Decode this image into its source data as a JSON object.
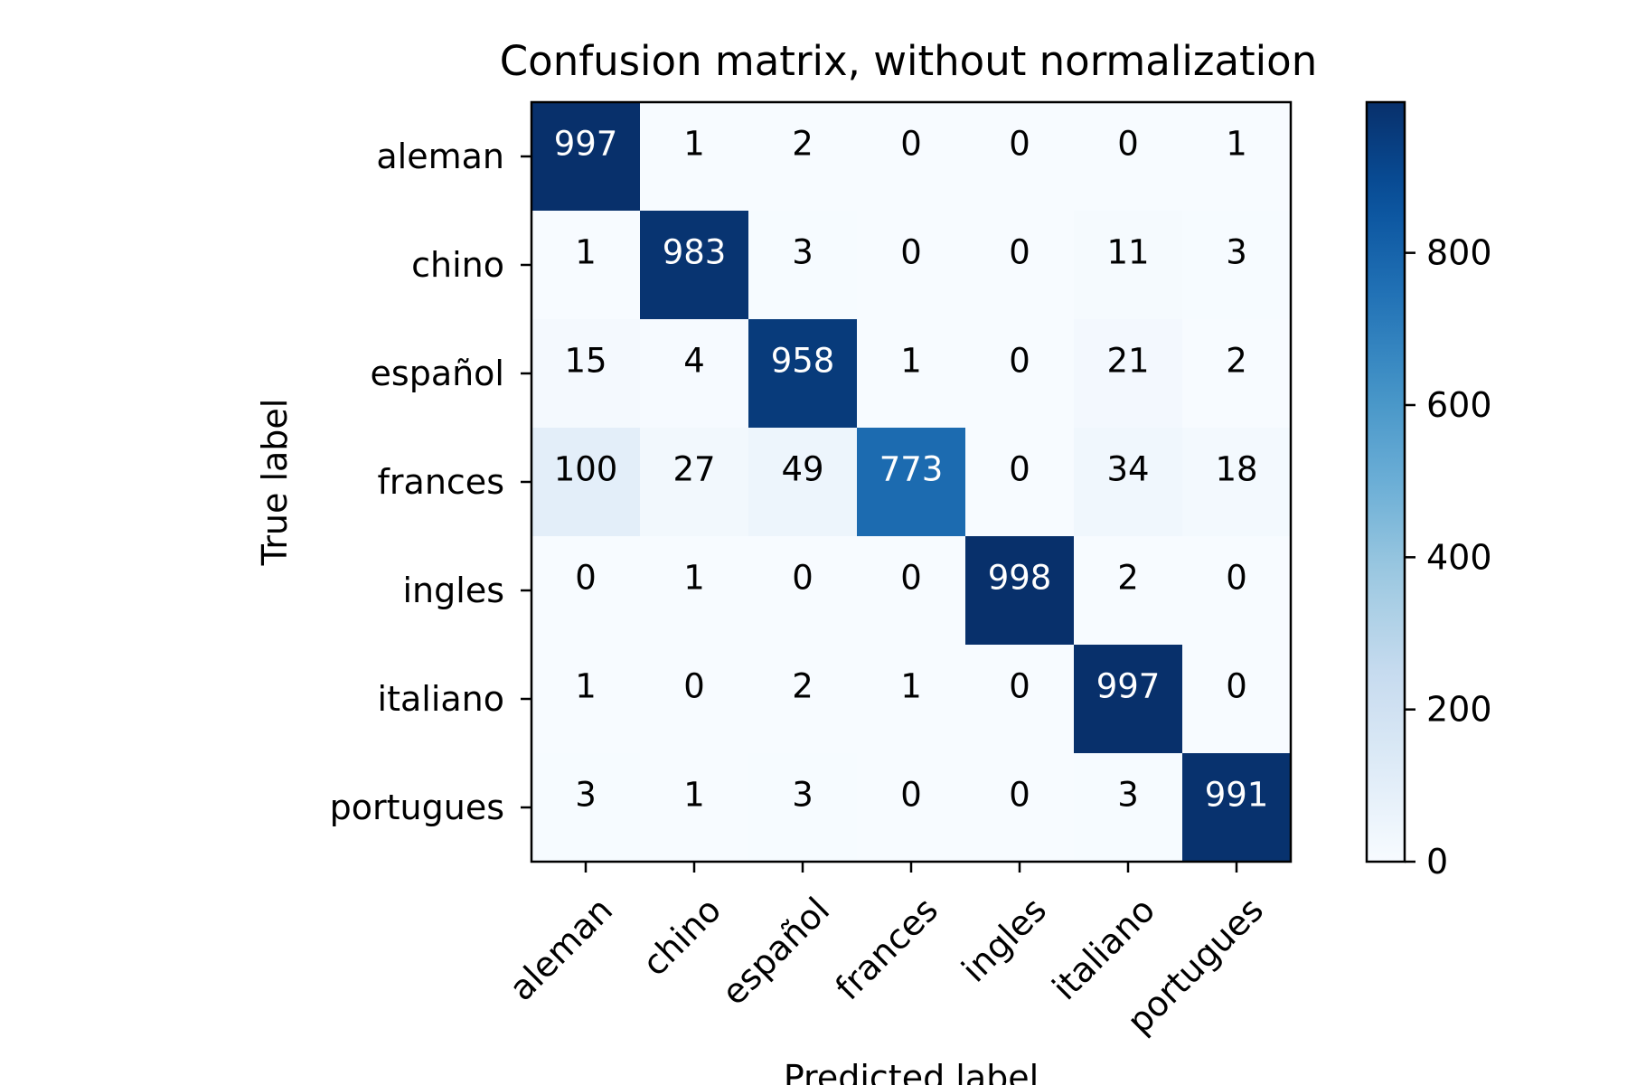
{
  "chart_data": {
    "type": "heatmap",
    "title": "Confusion matrix, without normalization",
    "xlabel": "Predicted label",
    "ylabel": "True label",
    "x_categories": [
      "aleman",
      "chino",
      "español",
      "frances",
      "ingles",
      "italiano",
      "portugues"
    ],
    "y_categories": [
      "aleman",
      "chino",
      "español",
      "frances",
      "ingles",
      "italiano",
      "portugues"
    ],
    "matrix": [
      [
        997,
        1,
        2,
        0,
        0,
        0,
        1
      ],
      [
        1,
        983,
        3,
        0,
        0,
        11,
        3
      ],
      [
        15,
        4,
        958,
        1,
        0,
        21,
        2
      ],
      [
        100,
        27,
        49,
        773,
        0,
        34,
        18
      ],
      [
        0,
        1,
        0,
        0,
        998,
        2,
        0
      ],
      [
        1,
        0,
        2,
        1,
        0,
        997,
        0
      ],
      [
        3,
        1,
        3,
        0,
        0,
        3,
        991
      ]
    ],
    "colormap": "Blues",
    "colorbar": {
      "range": [
        0,
        998
      ],
      "ticks": [
        0,
        200,
        400,
        600,
        800
      ]
    },
    "colors": {
      "low": "#f7fbff",
      "high": "#08306b",
      "text_light": "#ffffff",
      "text_dark": "#000000"
    },
    "grid": false
  }
}
